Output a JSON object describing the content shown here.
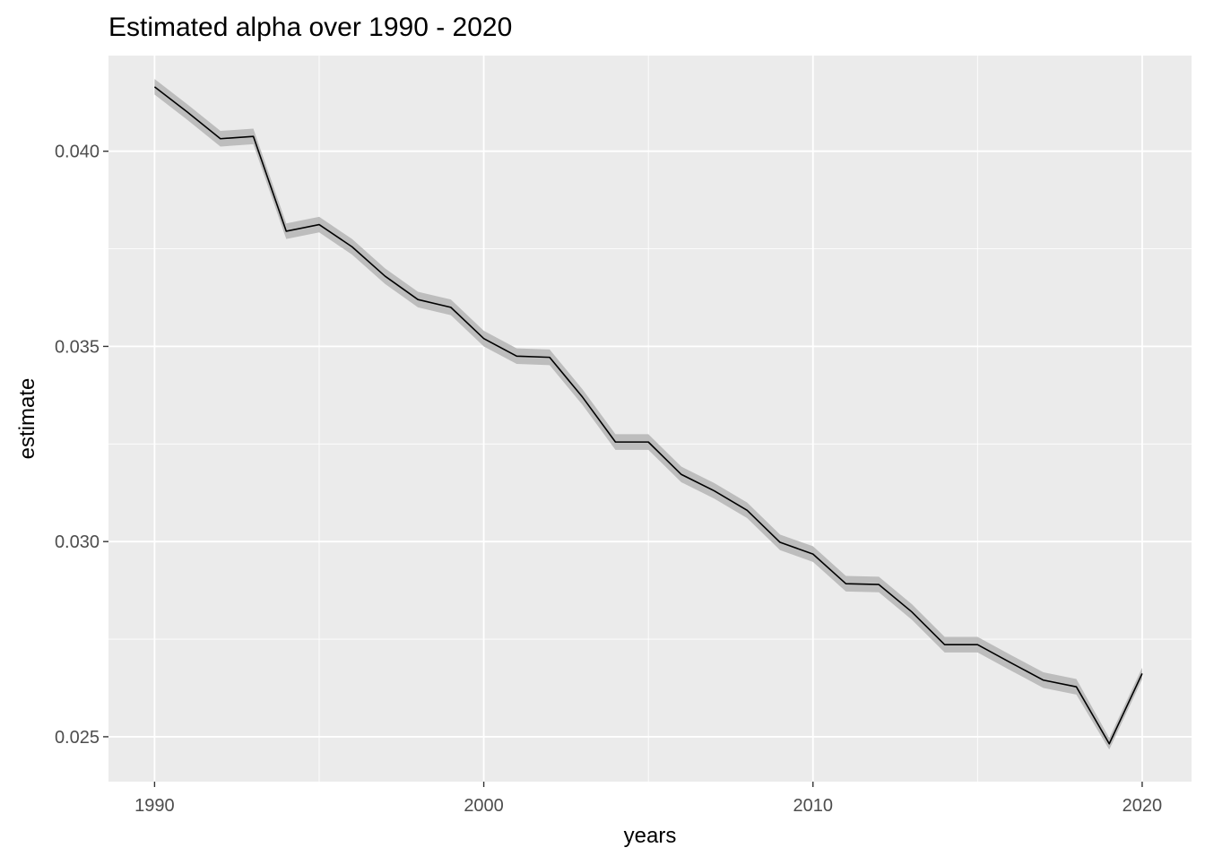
{
  "chart_data": {
    "type": "line",
    "title": "Estimated alpha over 1990 - 2020",
    "xlabel": "years",
    "ylabel": "estimate",
    "xlim": [
      1988.6,
      2021.5
    ],
    "ylim": [
      0.02385,
      0.04245
    ],
    "x_ticks": [
      1990,
      2000,
      2010,
      2020
    ],
    "x_tick_labels": [
      "1990",
      "2000",
      "2010",
      "2020"
    ],
    "y_ticks": [
      0.025,
      0.03,
      0.035,
      0.04
    ],
    "y_tick_labels": [
      "0.025",
      "0.030",
      "0.035",
      "0.040"
    ],
    "grid": true,
    "legend": "none",
    "colors": {
      "panel": "#ebebeb",
      "grid": "#ffffff",
      "line": "#000000",
      "ribbon": "#bdbdbd",
      "axis_text": "#4d4d4d"
    },
    "series": [
      {
        "x": [
          1990,
          1991,
          1992,
          1993,
          1994,
          1995,
          1996,
          1997,
          1998,
          1999,
          2000,
          2001,
          2002,
          2003,
          2004,
          2005,
          2006,
          2007,
          2008,
          2009,
          2010,
          2011,
          2012,
          2013,
          2014,
          2015,
          2016,
          2017,
          2018,
          2019,
          2020
        ],
        "values": [
          0.04165,
          0.041,
          0.04032,
          0.04038,
          0.03795,
          0.03812,
          0.03755,
          0.0368,
          0.0362,
          0.036,
          0.0352,
          0.03475,
          0.03472,
          0.0337,
          0.03255,
          0.03255,
          0.03172,
          0.0313,
          0.0308,
          0.02998,
          0.02968,
          0.02892,
          0.0289,
          0.0282,
          0.02736,
          0.02736,
          0.0269,
          0.02645,
          0.02628,
          0.02482,
          0.02662
        ],
        "lower": [
          0.04145,
          0.0408,
          0.04012,
          0.04018,
          0.03775,
          0.03792,
          0.03735,
          0.0366,
          0.036,
          0.0358,
          0.035,
          0.03455,
          0.03452,
          0.0335,
          0.03235,
          0.03235,
          0.03152,
          0.0311,
          0.0306,
          0.02978,
          0.02948,
          0.02872,
          0.0287,
          0.028,
          0.02716,
          0.02716,
          0.0267,
          0.02625,
          0.02608,
          0.02467,
          0.02647
        ],
        "upper": [
          0.04185,
          0.0412,
          0.04052,
          0.04058,
          0.03815,
          0.03832,
          0.03775,
          0.037,
          0.0364,
          0.0362,
          0.0354,
          0.03495,
          0.03492,
          0.0339,
          0.03275,
          0.03275,
          0.03192,
          0.0315,
          0.031,
          0.03018,
          0.02988,
          0.02912,
          0.0291,
          0.0284,
          0.02756,
          0.02756,
          0.0271,
          0.02665,
          0.02648,
          0.02497,
          0.02677
        ]
      }
    ]
  }
}
